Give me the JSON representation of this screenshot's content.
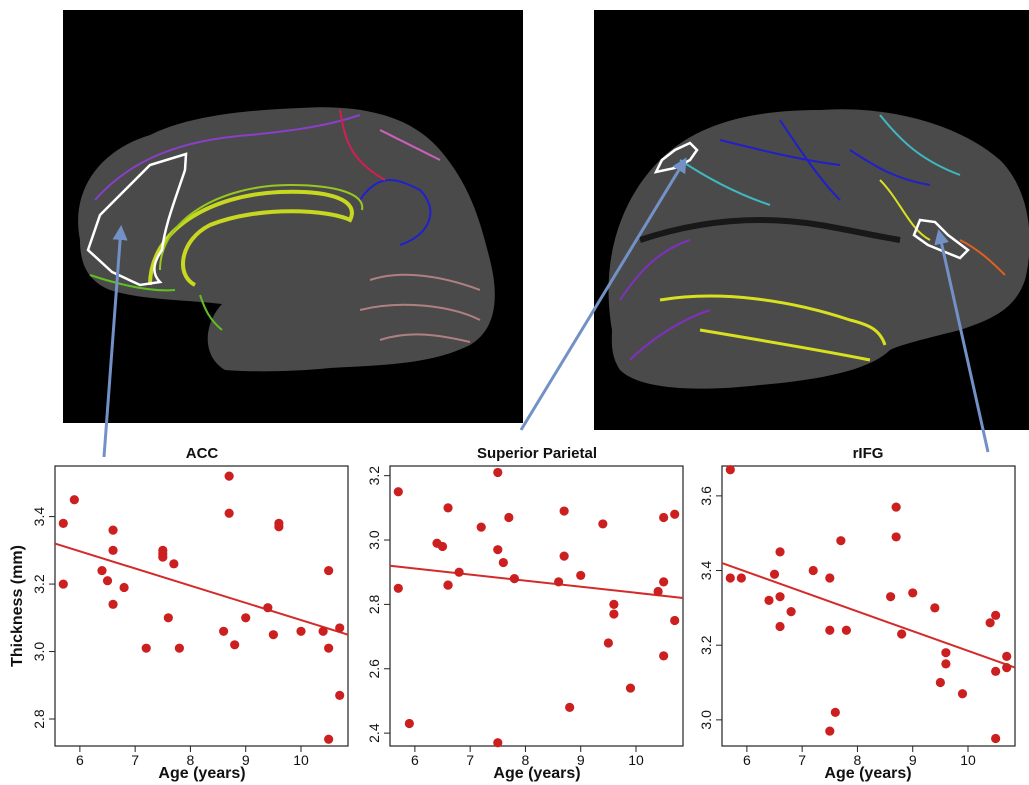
{
  "colors": {
    "point": "#cc1f1f",
    "fit_line": "#d42a2a",
    "arrow": "#7391c6",
    "brain_background": "#000000",
    "cortex": "#4a4a4a"
  },
  "brain_images": [
    {
      "view": "medial",
      "highlighted_region": "ACC"
    },
    {
      "view": "lateral",
      "highlighted_regions": [
        "Superior Parietal",
        "rIFG"
      ]
    }
  ],
  "chart_data": [
    {
      "type": "scatter",
      "title": "ACC",
      "xlabel": "Age (years)",
      "ylabel": "Thickness (mm)",
      "xlim": [
        5.55,
        10.85
      ],
      "ylim": [
        2.72,
        3.55
      ],
      "xticks": [
        6,
        7,
        8,
        9,
        10
      ],
      "yticks": [
        2.8,
        3.0,
        3.2,
        3.4
      ],
      "ytick_labels": [
        "2.8",
        "3.0",
        "3.2",
        "3.4"
      ],
      "grid": false,
      "fit_line": {
        "x": [
          5.55,
          10.85
        ],
        "y": [
          3.32,
          3.05
        ]
      },
      "x": [
        5.7,
        5.7,
        5.9,
        6.4,
        6.5,
        6.6,
        6.6,
        6.6,
        6.8,
        7.2,
        7.5,
        7.5,
        7.5,
        7.6,
        7.7,
        7.8,
        8.6,
        8.7,
        8.7,
        8.8,
        9.0,
        9.4,
        9.5,
        9.6,
        9.6,
        10.0,
        10.4,
        10.5,
        10.5,
        10.5,
        10.7,
        10.7
      ],
      "y": [
        3.38,
        3.2,
        3.45,
        3.24,
        3.21,
        3.36,
        3.3,
        3.14,
        3.19,
        3.01,
        3.3,
        3.29,
        3.28,
        3.1,
        3.26,
        3.01,
        3.06,
        3.52,
        3.41,
        3.02,
        3.1,
        3.13,
        3.05,
        3.37,
        3.38,
        3.06,
        3.06,
        3.24,
        3.01,
        2.74,
        3.07,
        2.87
      ]
    },
    {
      "type": "scatter",
      "title": "Superior Parietal",
      "xlabel": "Age (years)",
      "ylabel": "",
      "xlim": [
        5.55,
        10.85
      ],
      "ylim": [
        2.36,
        3.23
      ],
      "xticks": [
        6,
        7,
        8,
        9,
        10
      ],
      "yticks": [
        2.4,
        2.6,
        2.8,
        3.0,
        3.2
      ],
      "ytick_labels": [
        "2.4",
        "2.6",
        "2.8",
        "3.0",
        "3.2"
      ],
      "grid": false,
      "fit_line": {
        "x": [
          5.55,
          10.85
        ],
        "y": [
          2.92,
          2.82
        ]
      },
      "x": [
        5.7,
        5.7,
        5.9,
        6.4,
        6.5,
        6.6,
        6.6,
        6.6,
        6.8,
        7.2,
        7.5,
        7.5,
        7.5,
        7.6,
        7.7,
        7.8,
        8.6,
        8.7,
        8.7,
        8.8,
        9.0,
        9.4,
        9.5,
        9.6,
        9.6,
        9.9,
        10.4,
        10.5,
        10.5,
        10.5,
        10.7,
        10.7
      ],
      "y": [
        3.15,
        2.85,
        2.43,
        2.99,
        2.98,
        2.86,
        2.86,
        3.1,
        2.9,
        3.04,
        3.21,
        2.97,
        2.37,
        2.93,
        3.07,
        2.88,
        2.87,
        3.09,
        2.95,
        2.48,
        2.89,
        3.05,
        2.68,
        2.8,
        2.77,
        2.54,
        2.84,
        2.87,
        3.07,
        2.64,
        3.08,
        2.75
      ]
    },
    {
      "type": "scatter",
      "title": "rIFG",
      "xlabel": "Age (years)",
      "ylabel": "",
      "xlim": [
        5.55,
        10.85
      ],
      "ylim": [
        2.93,
        3.68
      ],
      "xticks": [
        6,
        7,
        8,
        9,
        10
      ],
      "yticks": [
        3.0,
        3.2,
        3.4,
        3.6
      ],
      "ytick_labels": [
        "3.0",
        "3.2",
        "3.4",
        "3.6"
      ],
      "grid": false,
      "fit_line": {
        "x": [
          5.55,
          10.85
        ],
        "y": [
          3.42,
          3.14
        ]
      },
      "x": [
        5.7,
        5.7,
        5.9,
        6.4,
        6.5,
        6.6,
        6.6,
        6.6,
        6.8,
        7.2,
        7.5,
        7.5,
        7.5,
        7.6,
        7.7,
        7.8,
        8.6,
        8.7,
        8.7,
        8.8,
        9.0,
        9.4,
        9.5,
        9.6,
        9.6,
        9.9,
        10.4,
        10.5,
        10.5,
        10.5,
        10.7,
        10.7
      ],
      "y": [
        3.67,
        3.38,
        3.38,
        3.32,
        3.39,
        3.33,
        3.25,
        3.45,
        3.29,
        3.4,
        3.38,
        3.24,
        2.97,
        3.02,
        3.48,
        3.24,
        3.33,
        3.57,
        3.49,
        3.23,
        3.34,
        3.3,
        3.1,
        3.15,
        3.18,
        3.07,
        3.26,
        3.28,
        3.13,
        2.95,
        3.17,
        3.14
      ]
    }
  ]
}
